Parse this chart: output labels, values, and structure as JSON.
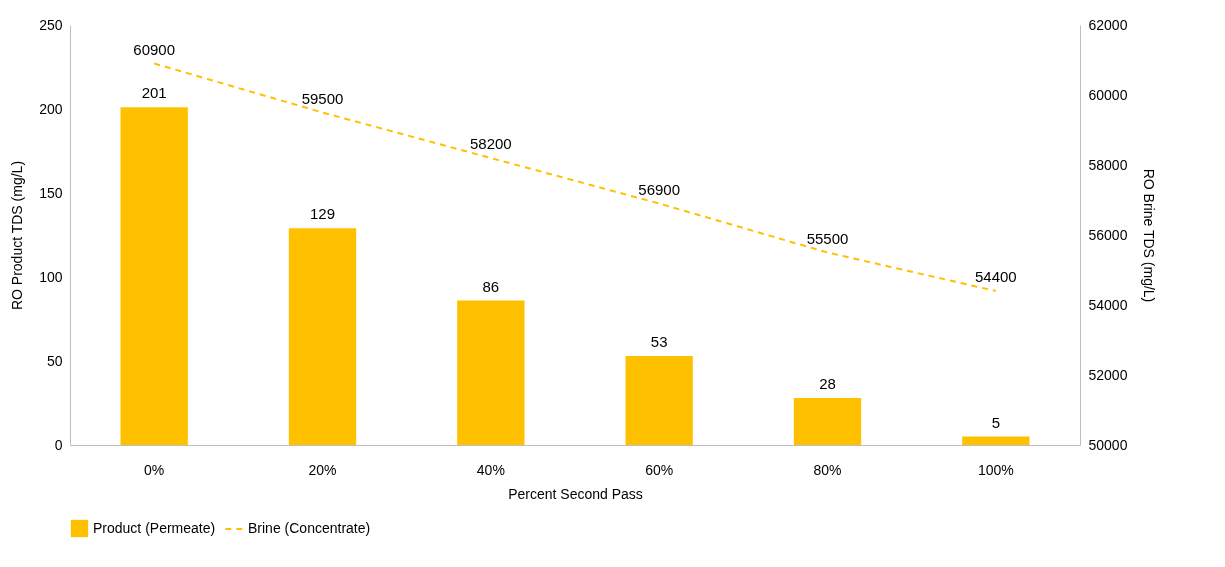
{
  "chart_data": {
    "type": "bar",
    "xlabel": "Percent Second Pass",
    "ylabel": "RO Product TDS (mg/L)",
    "y2label": "RO Brine TDS (mg/L)",
    "categories": [
      "0%",
      "20%",
      "40%",
      "60%",
      "80%",
      "100%"
    ],
    "series": [
      {
        "name": "Product (Permeate)",
        "color": "#ffc000",
        "values": [
          201,
          129,
          86,
          53,
          28,
          5
        ]
      },
      {
        "name": "Brine (Concentrate)",
        "type": "line",
        "axis": "y2",
        "line_style": "dashed",
        "color": "#ffc000",
        "values": [
          60900,
          59500,
          58200,
          56900,
          55500,
          54400
        ]
      }
    ],
    "ylim": [
      0,
      250
    ],
    "yticks": [
      0,
      50,
      100,
      150,
      200,
      250
    ],
    "y2lim": [
      50000,
      62000
    ],
    "y2ticks": [
      50000,
      52000,
      54000,
      56000,
      58000,
      60000,
      62000
    ],
    "data_labels": true,
    "legend": "bottom"
  }
}
